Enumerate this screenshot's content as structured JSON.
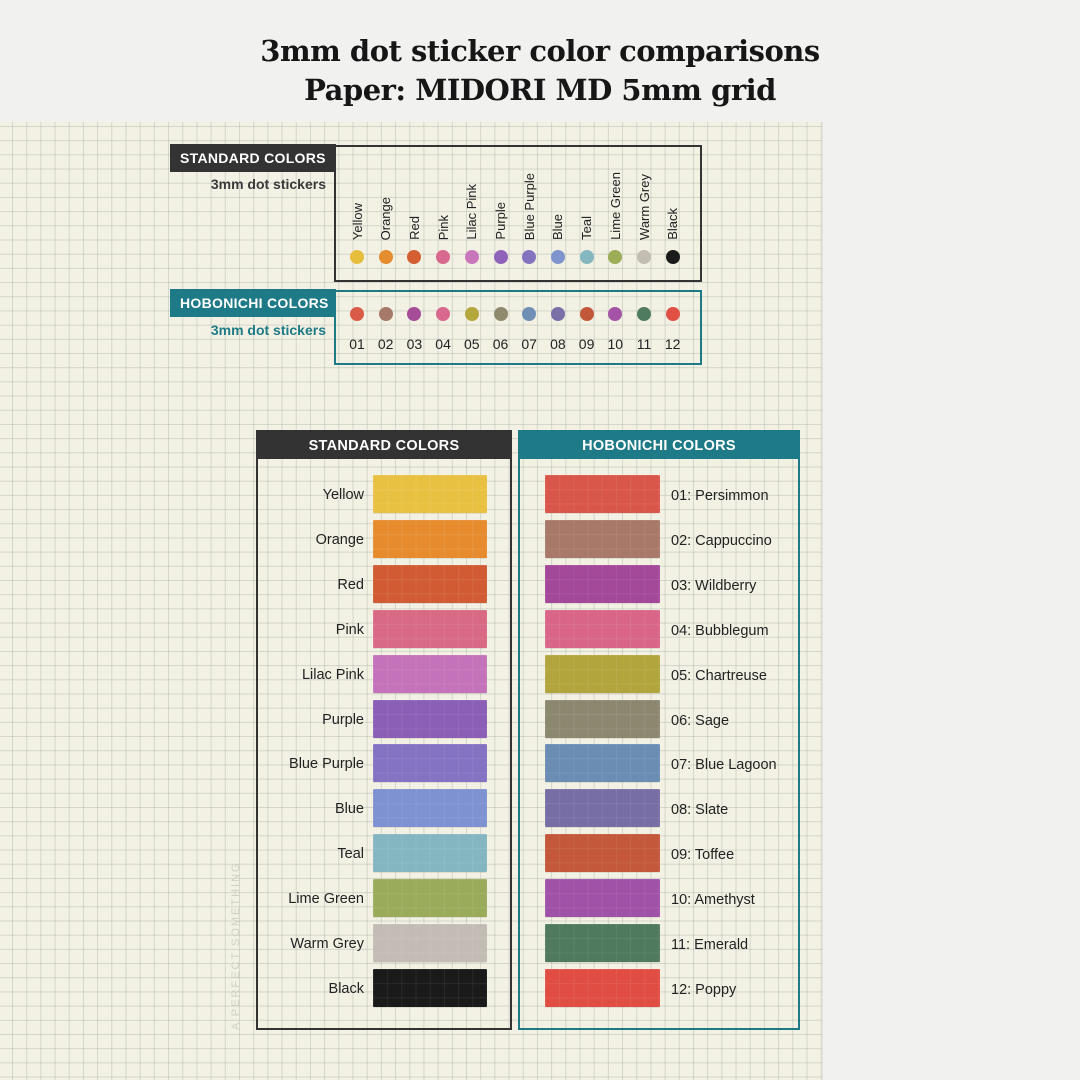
{
  "title": {
    "line1": "3mm dot sticker color comparisons",
    "line2": "Paper: MIDORI MD 5mm grid"
  },
  "standard_small": {
    "tag": "STANDARD COLORS",
    "subtitle": "3mm dot stickers",
    "colors": [
      {
        "label": "Yellow",
        "color": "#e7bd3d"
      },
      {
        "label": "Orange",
        "color": "#e58c2e"
      },
      {
        "label": "Red",
        "color": "#d35f33"
      },
      {
        "label": "Pink",
        "color": "#d8688d"
      },
      {
        "label": "Lilac Pink",
        "color": "#c878ba"
      },
      {
        "label": "Purple",
        "color": "#8f63b9"
      },
      {
        "label": "Blue Purple",
        "color": "#8573bf"
      },
      {
        "label": "Blue",
        "color": "#7f93cd"
      },
      {
        "label": "Teal",
        "color": "#86b7c0"
      },
      {
        "label": "Lime Green",
        "color": "#9dac57"
      },
      {
        "label": "Warm Grey",
        "color": "#c4bdb2"
      },
      {
        "label": "Black",
        "color": "#1b1b1b"
      }
    ]
  },
  "hobonichi_small": {
    "tag": "HOBONICHI COLORS",
    "subtitle": "3mm dot stickers",
    "colors": [
      {
        "label": "01",
        "color": "#d95a46"
      },
      {
        "label": "02",
        "color": "#a67a6a"
      },
      {
        "label": "03",
        "color": "#a64c98"
      },
      {
        "label": "04",
        "color": "#d9688e"
      },
      {
        "label": "05",
        "color": "#b6a73c"
      },
      {
        "label": "06",
        "color": "#8f8a6e"
      },
      {
        "label": "07",
        "color": "#6f8fb5"
      },
      {
        "label": "08",
        "color": "#7b6fa8"
      },
      {
        "label": "09",
        "color": "#c3573a"
      },
      {
        "label": "10",
        "color": "#a553a6"
      },
      {
        "label": "11",
        "color": "#4f7c60"
      },
      {
        "label": "12",
        "color": "#e05045"
      }
    ]
  },
  "standard_big": {
    "header": "STANDARD COLORS",
    "swatches": [
      {
        "label": "Yellow",
        "color": "#e9c142"
      },
      {
        "label": "Orange",
        "color": "#e68c2f"
      },
      {
        "label": "Red",
        "color": "#d15c34"
      },
      {
        "label": "Pink",
        "color": "#d86a86"
      },
      {
        "label": "Lilac Pink",
        "color": "#c473ba"
      },
      {
        "label": "Purple",
        "color": "#8b5fb6"
      },
      {
        "label": "Blue Purple",
        "color": "#8373c2"
      },
      {
        "label": "Blue",
        "color": "#7e92d2"
      },
      {
        "label": "Teal",
        "color": "#84b6c1"
      },
      {
        "label": "Lime Green",
        "color": "#9aac5b"
      },
      {
        "label": "Warm Grey",
        "color": "#c3bcb4"
      },
      {
        "label": "Black",
        "color": "#1a1a1a"
      }
    ]
  },
  "hobonichi_big": {
    "header": "HOBONICHI COLORS",
    "swatches": [
      {
        "label": "01: Persimmon",
        "color": "#d9574a"
      },
      {
        "label": "02: Cappuccino",
        "color": "#a87969"
      },
      {
        "label": "03: Wildberry",
        "color": "#a4489a"
      },
      {
        "label": "04: Bubblegum",
        "color": "#d96689"
      },
      {
        "label": "05: Chartreuse",
        "color": "#b3a53d"
      },
      {
        "label": "06: Sage",
        "color": "#8c8870"
      },
      {
        "label": "07: Blue Lagoon",
        "color": "#6b8db3"
      },
      {
        "label": "08: Slate",
        "color": "#786ea6"
      },
      {
        "label": "09: Toffee",
        "color": "#c3583b"
      },
      {
        "label": "10: Amethyst",
        "color": "#a052a8"
      },
      {
        "label": "11: Emerald",
        "color": "#4f7a5e"
      },
      {
        "label": "12: Poppy",
        "color": "#e04d43"
      }
    ]
  },
  "watermark": "A PERFECT SOMETHING"
}
